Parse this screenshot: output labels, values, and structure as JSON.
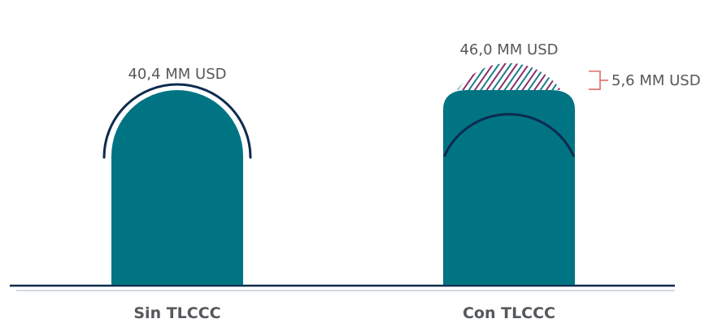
{
  "chart_data": {
    "type": "bar",
    "title": "",
    "xlabel": "",
    "ylabel": "",
    "unit": "MM USD",
    "categories": [
      "Sin TLCCC",
      "Con TLCCC"
    ],
    "values": [
      40.4,
      46.0
    ],
    "value_labels": [
      "40,4 MM USD",
      "46,0 MM USD"
    ],
    "increment": {
      "category": "Con TLCCC",
      "from": 40.4,
      "to": 46.0,
      "value": 5.6,
      "label": "5,6 MM USD"
    },
    "legend": "none",
    "grid": false,
    "colors": {
      "bar": "#007483",
      "arc": "#0d2b4e",
      "hatch_a": "#8a2f6a",
      "hatch_b": "#1a7f8c",
      "bracket": "#e06a6a",
      "baseline_top": "#0d2b4e",
      "baseline_bottom": "#b8c4cc",
      "text": "#55585c"
    }
  }
}
